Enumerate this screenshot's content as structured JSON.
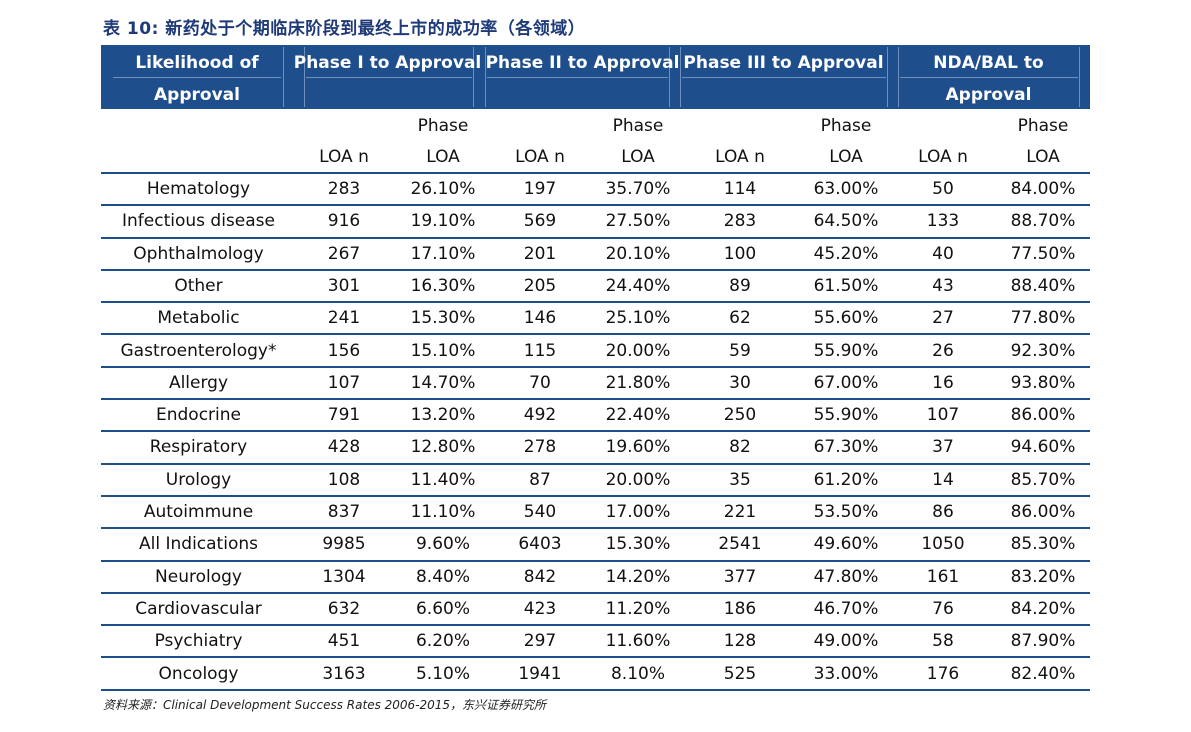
{
  "title": "表 10: 新药处于个期临床阶段到最终上市的成功率（各领域）",
  "header": {
    "col0_line1": "Likelihood of",
    "col0_line2": "Approval",
    "phase1": "Phase I to Approval",
    "phase2": "Phase II to Approval",
    "phase3": "Phase III to Approval",
    "nda_line1": "NDA/BAL  to",
    "nda_line2": "Approval"
  },
  "subheader": {
    "loa_n": "LOA n",
    "phase_line1": "Phase",
    "phase_line2": "LOA"
  },
  "rows": [
    [
      "Hematology",
      "283",
      "26.10%",
      "197",
      "35.70%",
      "114",
      "63.00%",
      "50",
      "84.00%"
    ],
    [
      "Infectious disease",
      "916",
      "19.10%",
      "569",
      "27.50%",
      "283",
      "64.50%",
      "133",
      "88.70%"
    ],
    [
      "Ophthalmology",
      "267",
      "17.10%",
      "201",
      "20.10%",
      "100",
      "45.20%",
      "40",
      "77.50%"
    ],
    [
      "Other",
      "301",
      "16.30%",
      "205",
      "24.40%",
      "89",
      "61.50%",
      "43",
      "88.40%"
    ],
    [
      "Metabolic",
      "241",
      "15.30%",
      "146",
      "25.10%",
      "62",
      "55.60%",
      "27",
      "77.80%"
    ],
    [
      "Gastroenterology*",
      "156",
      "15.10%",
      "115",
      "20.00%",
      "59",
      "55.90%",
      "26",
      "92.30%"
    ],
    [
      "Allergy",
      "107",
      "14.70%",
      "70",
      "21.80%",
      "30",
      "67.00%",
      "16",
      "93.80%"
    ],
    [
      "Endocrine",
      "791",
      "13.20%",
      "492",
      "22.40%",
      "250",
      "55.90%",
      "107",
      "86.00%"
    ],
    [
      "Respiratory",
      "428",
      "12.80%",
      "278",
      "19.60%",
      "82",
      "67.30%",
      "37",
      "94.60%"
    ],
    [
      "Urology",
      "108",
      "11.40%",
      "87",
      "20.00%",
      "35",
      "61.20%",
      "14",
      "85.70%"
    ],
    [
      "Autoimmune",
      "837",
      "11.10%",
      "540",
      "17.00%",
      "221",
      "53.50%",
      "86",
      "86.00%"
    ],
    [
      "All Indications",
      "9985",
      "9.60%",
      "6403",
      "15.30%",
      "2541",
      "49.60%",
      "1050",
      "85.30%"
    ],
    [
      "Neurology",
      "1304",
      "8.40%",
      "842",
      "14.20%",
      "377",
      "47.80%",
      "161",
      "83.20%"
    ],
    [
      "Cardiovascular",
      "632",
      "6.60%",
      "423",
      "11.20%",
      "186",
      "46.70%",
      "76",
      "84.20%"
    ],
    [
      "Psychiatry",
      "451",
      "6.20%",
      "297",
      "11.60%",
      "128",
      "49.00%",
      "58",
      "87.90%"
    ],
    [
      "Oncology",
      "3163",
      "5.10%",
      "1941",
      "8.10%",
      "525",
      "33.00%",
      "176",
      "82.40%"
    ]
  ],
  "source": "资料来源：Clinical Development  Success Rates 2006-2015，东兴证券研究所",
  "colors": {
    "header_bg": "#1f4e8c",
    "title": "#1e3a78",
    "rule": "#1f4e8c"
  }
}
